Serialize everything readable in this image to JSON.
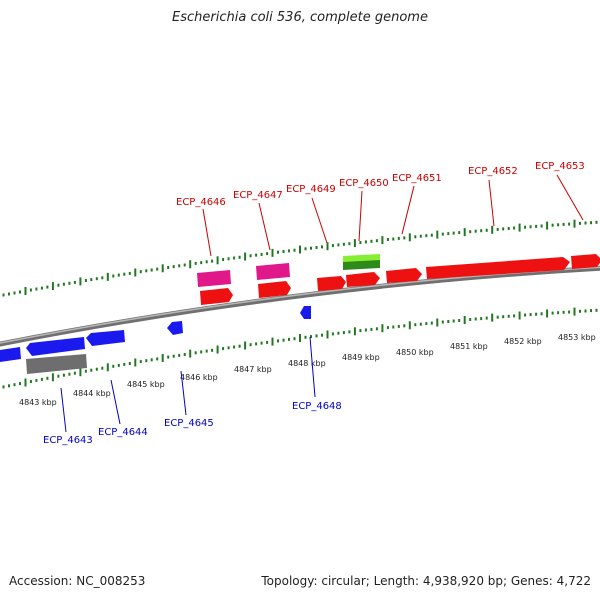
{
  "title": "Escherichia coli 536, complete genome",
  "footer": {
    "accession": "Accession: NC_008253",
    "summary": "Topology: circular; Length: 4,938,920 bp; Genes: 4,722"
  },
  "colors": {
    "forward_gene": "#ee1111",
    "reverse_gene": "#1a1aee",
    "pink_gene": "#e0188a",
    "green_gene": "#66cc22",
    "gray_gene": "#6e6e6e",
    "backbone": "#8a8a8a",
    "ticks": "#227722",
    "label_forward": "#cc0000",
    "label_reverse": "#0000cc"
  },
  "scale_labels": [
    "4843 kbp",
    "4844 kbp",
    "4845 kbp",
    "4846 kbp",
    "4847 kbp",
    "4848 kbp",
    "4849 kbp",
    "4850 kbp",
    "4851 kbp",
    "4852 kbp",
    "4853 kbp"
  ],
  "top_gene_labels": [
    "ECP_4646",
    "ECP_4647",
    "ECP_4649",
    "ECP_4650",
    "ECP_4651",
    "ECP_4652",
    "ECP_4653"
  ],
  "bottom_gene_labels": [
    "ECP_4643",
    "ECP_4644",
    "ECP_4645",
    "ECP_4648"
  ]
}
